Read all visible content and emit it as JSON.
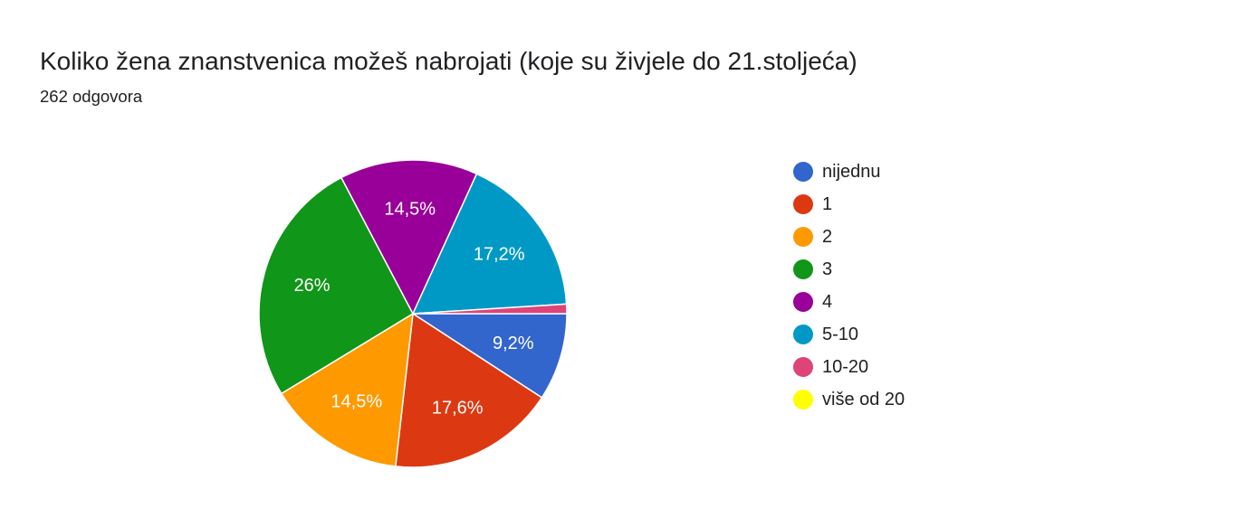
{
  "header": {
    "title": "Koliko žena znanstvenica možeš nabrojati (koje su živjele do 21.stoljeća)",
    "responses": "262 odgovora"
  },
  "chart_data": {
    "type": "pie",
    "title": "Koliko žena znanstvenica možeš nabrojati (koje su živjele do 21.stoljeća)",
    "legend_position": "right",
    "slices": [
      {
        "label": "nijednu",
        "value": 9.2,
        "display": "9,2%",
        "color": "#3366cc"
      },
      {
        "label": "1",
        "value": 17.6,
        "display": "17,6%",
        "color": "#dc3912"
      },
      {
        "label": "2",
        "value": 14.5,
        "display": "14,5%",
        "color": "#ff9900"
      },
      {
        "label": "3",
        "value": 26.0,
        "display": "26%",
        "color": "#109618"
      },
      {
        "label": "4",
        "value": 14.5,
        "display": "14,5%",
        "color": "#990099"
      },
      {
        "label": "5-10",
        "value": 17.2,
        "display": "17,2%",
        "color": "#0099c6"
      },
      {
        "label": "10-20",
        "value": 1.0,
        "display": "",
        "color": "#dd4477"
      },
      {
        "label": "više od 20",
        "value": 0.0,
        "display": "",
        "color": "#ffff00"
      }
    ]
  }
}
